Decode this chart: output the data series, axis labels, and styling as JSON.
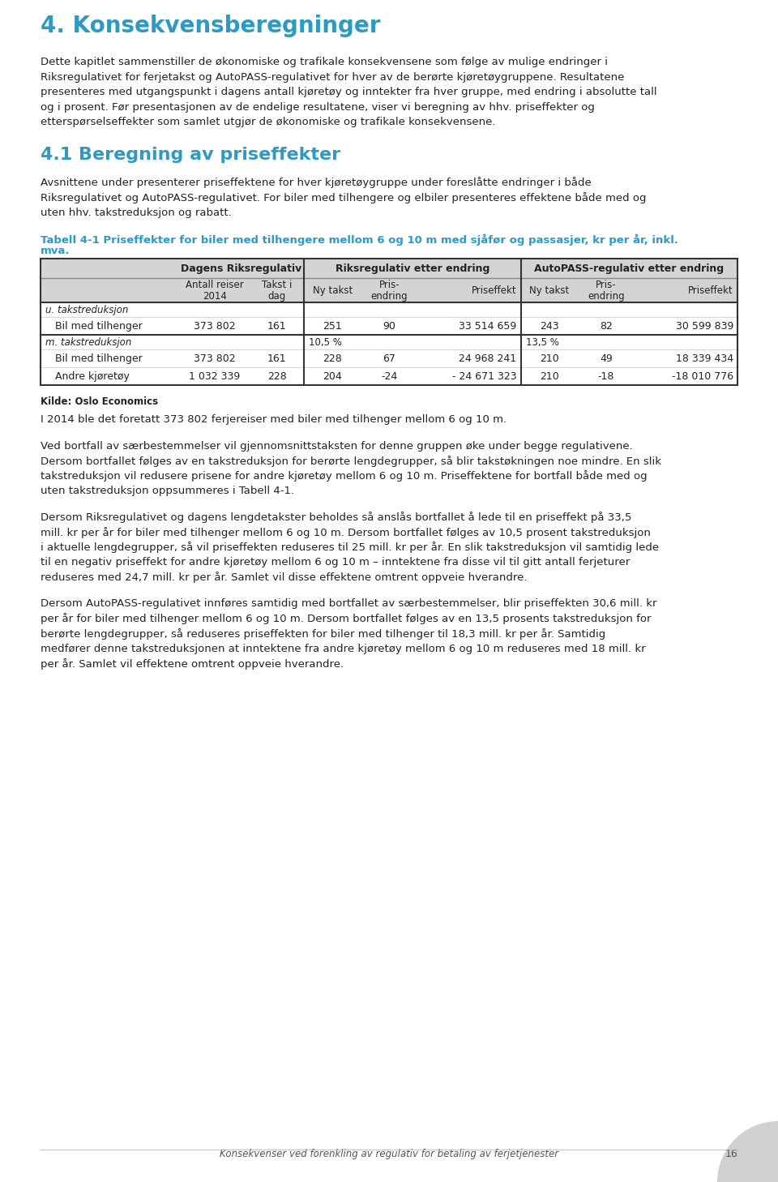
{
  "page_bg": "#ffffff",
  "heading1": "4. Konsekvensberegninger",
  "heading1_color": "#2e9ac4",
  "heading2": "4.1 Beregning av priseffekter",
  "heading2_color": "#2e9ac4",
  "table_caption_color": "#2e9ac4",
  "table_caption_line1": "Tabell 4-1 Priseffekter for biler med tilhengere mellom 6 og 10 m med sjåfør og passasjer, kr per år, inkl.",
  "table_caption_line2": "mva.",
  "body_text_color": "#222222",
  "para1_lines": [
    "Dette kapitlet sammenstiller de økonomiske og trafikale konsekvensene som følge av mulige endringer i",
    "Riksregulativet for ferjetakst og AutoPASS-regulativet for hver av de berørte kjøretøygruppene. Resultatene",
    "presenteres med utgangspunkt i dagens antall kjøretøy og inntekter fra hver gruppe, med endring i absolutte tall",
    "og i prosent. Før presentasjonen av de endelige resultatene, viser vi beregning av hhv. priseffekter og",
    "etterspørselseffekter som samlet utgjør de økonomiske og trafikale konsekvensene."
  ],
  "para2_lines": [
    "Avsnittene under presenterer priseffektene for hver kjøretøygruppe under foreslåtte endringer i både",
    "Riksregulativet og AutoPASS-regulativet. For biler med tilhengere og elbiler presenteres effektene både med og",
    "uten hhv. takstreduksjon og rabatt."
  ],
  "para3_lines": [
    "I 2014 ble det foretatt 373 802 ferjereiser med biler med tilhenger mellom 6 og 10 m."
  ],
  "para4_lines": [
    "Ved bortfall av særbestemmelser vil gjennomsnittstaksten for denne gruppen øke under begge regulativene.",
    "Dersom bortfallet følges av en takstreduksjon for berørte lengdegrupper, så blir takstøkningen noe mindre. En slik",
    "takstreduksjon vil redusere prisene for andre kjøretøy mellom 6 og 10 m. Priseffektene for bortfall både med og",
    "uten takstreduksjon oppsummeres i Tabell 4-1."
  ],
  "para5_lines": [
    "Dersom Riksregulativet og dagens lengdetakster beholdes så anslås bortfallet å lede til en priseffekt på 33,5",
    "mill. kr per år for biler med tilhenger mellom 6 og 10 m. Dersom bortfallet følges av 10,5 prosent takstreduksjon",
    "i aktuelle lengdegrupper, så vil priseffekten reduseres til 25 mill. kr per år. En slik takstreduksjon vil samtidig lede",
    "til en negativ priseffekt for andre kjøretøy mellom 6 og 10 m – inntektene fra disse vil til gitt antall ferjeturer",
    "reduseres med 24,7 mill. kr per år. Samlet vil disse effektene omtrent oppveie hverandre."
  ],
  "para6_lines": [
    "Dersom AutoPASS-regulativet innføres samtidig med bortfallet av særbestemmelser, blir priseffekten 30,6 mill. kr",
    "per år for biler med tilhenger mellom 6 og 10 m. Dersom bortfallet følges av en 13,5 prosents takstreduksjon for",
    "berørte lengdegrupper, så reduseres priseffekten for biler med tilhenger til 18,3 mill. kr per år. Samtidig",
    "medfører denne takstreduksjonen at inntektene fra andre kjøretøy mellom 6 og 10 m reduseres med 18 mill. kr",
    "per år. Samlet vil effektene omtrent oppveie hverandre."
  ],
  "source_label": "Kilde: Oslo Economics",
  "footer_text": "Konsekvenser ved forenkling av regulativ for betaling av ferjetjenester",
  "footer_page": "16",
  "sub_col_headers": [
    "",
    "Antall reiser\n2014",
    "Takst i\ndag",
    "Ny takst",
    "Pris-\nendring",
    "Priseffekt",
    "Ny takst",
    "Pris-\nendring",
    "Priseffekt"
  ],
  "section1_label": "u. takstreduksjon",
  "section1_rows": [
    [
      "Bil med tilhenger",
      "373 802",
      "161",
      "251",
      "90",
      "33 514 659",
      "243",
      "82",
      "30 599 839"
    ]
  ],
  "section2_label": "m. takstreduksjon",
  "section2_note_rik": "10,5 %",
  "section2_note_auto": "13,5 %",
  "section2_rows": [
    [
      "Bil med tilhenger",
      "373 802",
      "161",
      "228",
      "67",
      "24 968 241",
      "210",
      "49",
      "18 339 434"
    ],
    [
      "Andre kjøretøy",
      "1 032 339",
      "228",
      "204",
      "-24",
      "- 24 671 323",
      "210",
      "-18",
      "-18 010 776"
    ]
  ]
}
